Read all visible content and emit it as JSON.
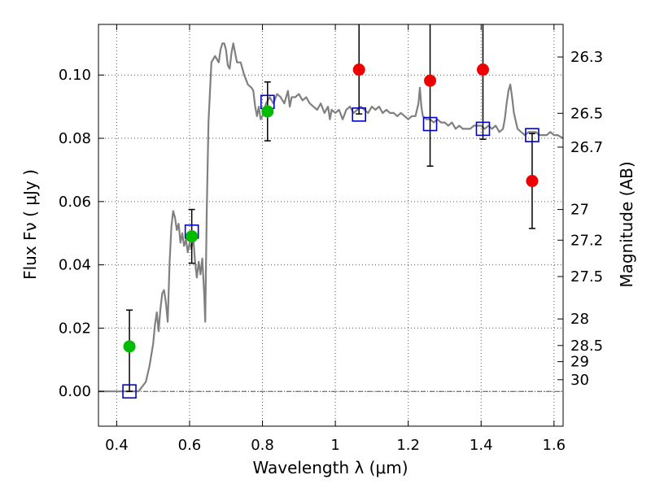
{
  "chart_data": {
    "type": "scatter",
    "xlabel": "Wavelength  λ (μm)",
    "ylabel": "Flux  Fν  ( μJy )",
    "y2label": "Magnitude (AB)",
    "xlim": [
      0.35,
      1.625
    ],
    "ylim": [
      -0.011,
      0.116
    ],
    "xticks": [
      0.4,
      0.6,
      0.8,
      1.0,
      1.2,
      1.4,
      1.6
    ],
    "xtick_labels": [
      "0.4",
      "0.6",
      "0.8",
      "1",
      "1.2",
      "1.4",
      "1.6"
    ],
    "yticks": [
      0.0,
      0.02,
      0.04,
      0.06,
      0.08,
      0.1
    ],
    "ytick_labels": [
      "0.00",
      "0.02",
      "0.04",
      "0.06",
      "0.08",
      "0.10"
    ],
    "right_ticks": [
      {
        "flux": 0.1057,
        "label": "26.3"
      },
      {
        "flux": 0.0879,
        "label": "26.5"
      },
      {
        "flux": 0.0772,
        "label": "26.7"
      },
      {
        "flux": 0.0575,
        "label": "27"
      },
      {
        "flux": 0.0478,
        "label": "27.2"
      },
      {
        "flux": 0.0363,
        "label": "27.5"
      },
      {
        "flux": 0.0229,
        "label": "28"
      },
      {
        "flux": 0.0145,
        "label": "28.5"
      },
      {
        "flux": 0.0094,
        "label": "29"
      },
      {
        "flux": 0.0037,
        "label": "30"
      }
    ],
    "grid": true,
    "zero_line": true,
    "colors": {
      "model": "#808080",
      "model_points": "#0000cc",
      "observed_green": "#00bb00",
      "observed_red": "#ee0000",
      "errorbar": "#000000",
      "grid": "#555555"
    },
    "series": [
      {
        "kind": "sed_model_line",
        "points": [
          [
            0.35,
            0.0
          ],
          [
            0.46,
            0.0
          ],
          [
            0.48,
            0.003
          ],
          [
            0.49,
            0.008
          ],
          [
            0.5,
            0.015
          ],
          [
            0.505,
            0.021
          ],
          [
            0.51,
            0.025
          ],
          [
            0.515,
            0.019
          ],
          [
            0.52,
            0.026
          ],
          [
            0.525,
            0.031
          ],
          [
            0.53,
            0.032
          ],
          [
            0.535,
            0.028
          ],
          [
            0.54,
            0.022
          ],
          [
            0.545,
            0.04
          ],
          [
            0.55,
            0.052
          ],
          [
            0.555,
            0.057
          ],
          [
            0.56,
            0.055
          ],
          [
            0.565,
            0.051
          ],
          [
            0.57,
            0.053
          ],
          [
            0.575,
            0.047
          ],
          [
            0.58,
            0.05
          ],
          [
            0.585,
            0.046
          ],
          [
            0.59,
            0.048
          ],
          [
            0.595,
            0.044
          ],
          [
            0.6,
            0.047
          ],
          [
            0.605,
            0.045
          ],
          [
            0.61,
            0.049
          ],
          [
            0.615,
            0.041
          ],
          [
            0.62,
            0.036
          ],
          [
            0.625,
            0.041
          ],
          [
            0.63,
            0.037
          ],
          [
            0.635,
            0.042
          ],
          [
            0.64,
            0.031
          ],
          [
            0.643,
            0.022
          ],
          [
            0.647,
            0.056
          ],
          [
            0.652,
            0.085
          ],
          [
            0.66,
            0.104
          ],
          [
            0.67,
            0.106
          ],
          [
            0.68,
            0.104
          ],
          [
            0.685,
            0.108
          ],
          [
            0.69,
            0.11
          ],
          [
            0.695,
            0.11
          ],
          [
            0.7,
            0.108
          ],
          [
            0.705,
            0.103
          ],
          [
            0.71,
            0.102
          ],
          [
            0.715,
            0.107
          ],
          [
            0.72,
            0.11
          ],
          [
            0.725,
            0.107
          ],
          [
            0.73,
            0.104
          ],
          [
            0.74,
            0.104
          ],
          [
            0.75,
            0.1
          ],
          [
            0.76,
            0.097
          ],
          [
            0.77,
            0.096
          ],
          [
            0.775,
            0.095
          ],
          [
            0.78,
            0.09
          ],
          [
            0.785,
            0.087
          ],
          [
            0.79,
            0.09
          ],
          [
            0.795,
            0.086
          ],
          [
            0.8,
            0.087
          ],
          [
            0.81,
            0.091
          ],
          [
            0.82,
            0.093
          ],
          [
            0.83,
            0.091
          ],
          [
            0.84,
            0.094
          ],
          [
            0.85,
            0.093
          ],
          [
            0.86,
            0.091
          ],
          [
            0.87,
            0.095
          ],
          [
            0.875,
            0.09
          ],
          [
            0.88,
            0.093
          ],
          [
            0.89,
            0.093
          ],
          [
            0.9,
            0.094
          ],
          [
            0.91,
            0.092
          ],
          [
            0.92,
            0.093
          ],
          [
            0.93,
            0.091
          ],
          [
            0.94,
            0.09
          ],
          [
            0.95,
            0.089
          ],
          [
            0.96,
            0.091
          ],
          [
            0.97,
            0.088
          ],
          [
            0.98,
            0.09
          ],
          [
            0.985,
            0.086
          ],
          [
            0.99,
            0.089
          ],
          [
            1.0,
            0.088
          ],
          [
            1.01,
            0.089
          ],
          [
            1.02,
            0.086
          ],
          [
            1.03,
            0.089
          ],
          [
            1.04,
            0.09
          ],
          [
            1.05,
            0.088
          ],
          [
            1.06,
            0.089
          ],
          [
            1.07,
            0.09
          ],
          [
            1.08,
            0.089
          ],
          [
            1.09,
            0.088
          ],
          [
            1.1,
            0.09
          ],
          [
            1.11,
            0.089
          ],
          [
            1.12,
            0.09
          ],
          [
            1.13,
            0.088
          ],
          [
            1.14,
            0.089
          ],
          [
            1.15,
            0.088
          ],
          [
            1.16,
            0.088
          ],
          [
            1.17,
            0.087
          ],
          [
            1.18,
            0.088
          ],
          [
            1.19,
            0.087
          ],
          [
            1.2,
            0.086
          ],
          [
            1.21,
            0.087
          ],
          [
            1.22,
            0.087
          ],
          [
            1.228,
            0.091
          ],
          [
            1.232,
            0.096
          ],
          [
            1.236,
            0.09
          ],
          [
            1.24,
            0.087
          ],
          [
            1.25,
            0.086
          ],
          [
            1.26,
            0.086
          ],
          [
            1.27,
            0.085
          ],
          [
            1.28,
            0.086
          ],
          [
            1.29,
            0.085
          ],
          [
            1.3,
            0.085
          ],
          [
            1.31,
            0.084
          ],
          [
            1.32,
            0.085
          ],
          [
            1.33,
            0.083
          ],
          [
            1.34,
            0.084
          ],
          [
            1.35,
            0.083
          ],
          [
            1.36,
            0.083
          ],
          [
            1.37,
            0.083
          ],
          [
            1.38,
            0.084
          ],
          [
            1.39,
            0.084
          ],
          [
            1.4,
            0.084
          ],
          [
            1.41,
            0.083
          ],
          [
            1.42,
            0.084
          ],
          [
            1.43,
            0.083
          ],
          [
            1.44,
            0.084
          ],
          [
            1.45,
            0.082
          ],
          [
            1.46,
            0.083
          ],
          [
            1.465,
            0.086
          ],
          [
            1.47,
            0.091
          ],
          [
            1.475,
            0.095
          ],
          [
            1.48,
            0.097
          ],
          [
            1.485,
            0.093
          ],
          [
            1.49,
            0.088
          ],
          [
            1.5,
            0.083
          ],
          [
            1.51,
            0.082
          ],
          [
            1.52,
            0.081
          ],
          [
            1.53,
            0.082
          ],
          [
            1.54,
            0.082
          ],
          [
            1.55,
            0.082
          ],
          [
            1.56,
            0.081
          ],
          [
            1.57,
            0.081
          ],
          [
            1.58,
            0.081
          ],
          [
            1.59,
            0.082
          ],
          [
            1.6,
            0.081
          ],
          [
            1.61,
            0.081
          ],
          [
            1.625,
            0.08
          ]
        ]
      },
      {
        "kind": "model_photometry",
        "marker": "open-square",
        "x": [
          0.435,
          0.606,
          0.814,
          1.065,
          1.26,
          1.405,
          1.54
        ],
        "y": [
          0.0,
          0.0505,
          0.0915,
          0.0875,
          0.0845,
          0.083,
          0.081
        ]
      },
      {
        "kind": "observed_photometry",
        "marker": "filled-circle",
        "points": [
          {
            "x": 0.435,
            "y": 0.0142,
            "yerr": [
              0.0142,
              0.0115
            ],
            "color": "green"
          },
          {
            "x": 0.606,
            "y": 0.049,
            "yerr": [
              0.0085,
              0.0085
            ],
            "color": "green"
          },
          {
            "x": 0.814,
            "y": 0.0885,
            "yerr": [
              0.0093,
              0.0093
            ],
            "color": "green"
          },
          {
            "x": 1.065,
            "y": 0.1017,
            "yerr": [
              0.014,
              0.03
            ],
            "color": "red"
          },
          {
            "x": 1.26,
            "y": 0.0982,
            "yerr": [
              0.027,
              0.03
            ],
            "color": "red"
          },
          {
            "x": 1.405,
            "y": 0.1017,
            "yerr": [
              0.022,
              0.03
            ],
            "color": "red"
          },
          {
            "x": 1.54,
            "y": 0.0665,
            "yerr": [
              0.015,
              0.015
            ],
            "color": "red"
          }
        ]
      }
    ]
  }
}
